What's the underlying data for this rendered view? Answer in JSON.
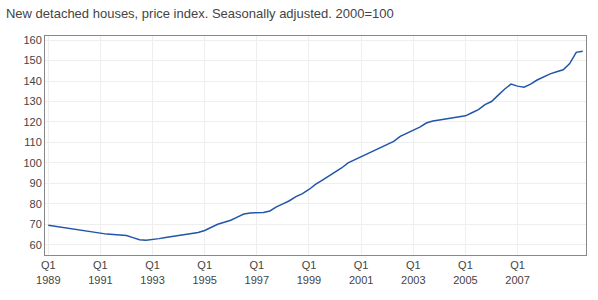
{
  "chart_data": {
    "type": "line",
    "title": "New detached houses, price index. Seasonally adjusted. 2000=100",
    "color": "#2255aa",
    "grid": true,
    "ylim": [
      55,
      162
    ],
    "yticks": [
      60,
      70,
      80,
      90,
      100,
      110,
      120,
      130,
      140,
      150,
      160
    ],
    "categories": [
      "Q1\n1989",
      null,
      null,
      null,
      null,
      null,
      null,
      null,
      "Q1\n1991",
      null,
      null,
      null,
      null,
      null,
      null,
      null,
      "Q1\n1993",
      null,
      null,
      null,
      null,
      null,
      null,
      null,
      "Q1\n1995",
      null,
      null,
      null,
      null,
      null,
      null,
      null,
      "Q1\n1997",
      null,
      null,
      null,
      null,
      null,
      null,
      null,
      "Q1\n1999",
      null,
      null,
      null,
      null,
      null,
      null,
      null,
      "Q1\n2001",
      null,
      null,
      null,
      null,
      null,
      null,
      null,
      "Q1\n2003",
      null,
      null,
      null,
      null,
      null,
      null,
      null,
      "Q1\n2005",
      null,
      null,
      null,
      null,
      null,
      null,
      null,
      "Q1\n2007",
      null,
      null,
      null,
      null,
      null,
      null,
      null,
      null,
      null,
      null
    ],
    "values": [
      69.5,
      69.0,
      68.5,
      68.0,
      67.5,
      67.0,
      66.5,
      66.0,
      65.5,
      65.2,
      65.0,
      64.8,
      64.5,
      63.5,
      62.5,
      62.2,
      62.5,
      63.0,
      63.5,
      64.0,
      64.5,
      65.0,
      65.5,
      66.0,
      67.0,
      68.5,
      70.0,
      71.0,
      72.0,
      73.5,
      75.0,
      75.5,
      75.5,
      75.8,
      76.5,
      78.5,
      80.0,
      81.5,
      83.5,
      85.0,
      87.0,
      89.5,
      91.5,
      93.5,
      95.5,
      97.5,
      100.0,
      101.5,
      103.0,
      104.5,
      106.0,
      107.5,
      109.0,
      110.5,
      113.0,
      114.5,
      116.0,
      117.5,
      119.5,
      120.5,
      121.0,
      121.5,
      122.0,
      122.5,
      123.0,
      124.5,
      126.0,
      128.5,
      130.0,
      133.0,
      136.0,
      138.5,
      137.5,
      137.0,
      138.5,
      140.5,
      142.0,
      143.5,
      144.5,
      145.5,
      148.5,
      154.0,
      154.5
    ]
  }
}
